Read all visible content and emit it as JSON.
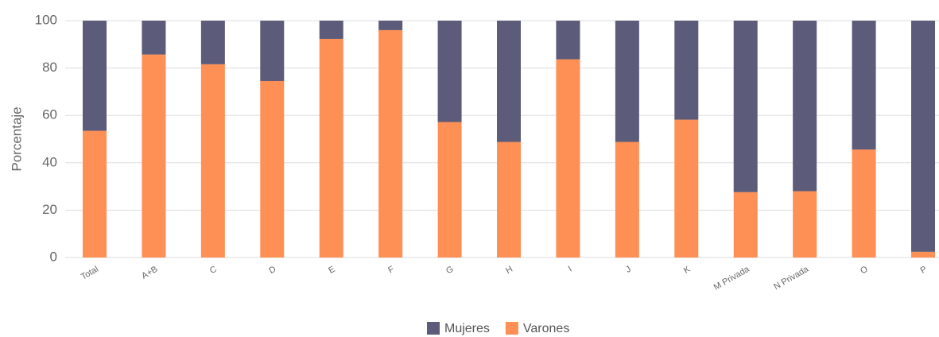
{
  "chart_data": {
    "type": "stacked_bar",
    "y_label": "Porcentaje",
    "categories": [
      "Total",
      "A+B",
      "C",
      "D",
      "E",
      "F",
      "G",
      "H",
      "I",
      "J",
      "K",
      "M Privada",
      "N Privada",
      "O",
      "P"
    ],
    "series": [
      {
        "name": "Mujeres",
        "color": "#5c5b79",
        "values": [
          46.5,
          14.3,
          18.4,
          25.5,
          7.7,
          4,
          42.8,
          51.2,
          16.3,
          51.2,
          41.8,
          72.4,
          72,
          54.4,
          97.6
        ]
      },
      {
        "name": "Varones",
        "color": "#fe8f55",
        "values": [
          53.5,
          85.7,
          81.6,
          74.5,
          92.3,
          96,
          57.2,
          48.8,
          83.7,
          48.8,
          58.2,
          27.6,
          28,
          45.6,
          2.4
        ]
      }
    ],
    "ylim": [
      0,
      100
    ],
    "yticks": [
      0,
      20,
      40,
      60,
      80,
      100
    ],
    "grid": true
  }
}
